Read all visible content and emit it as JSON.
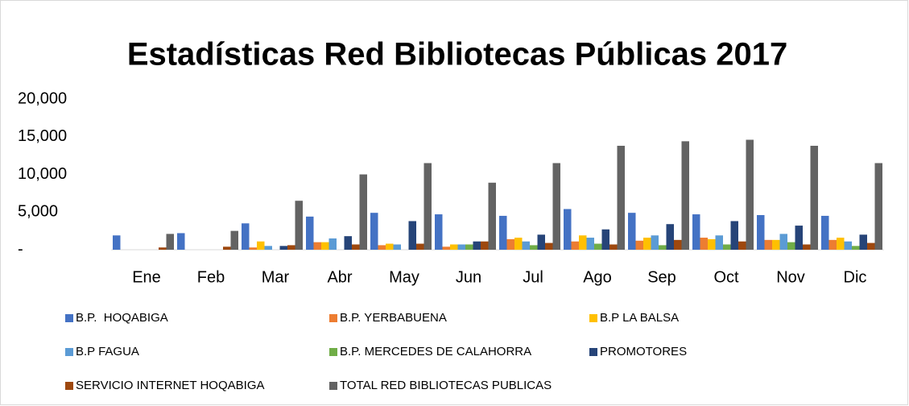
{
  "chart_data": {
    "type": "bar",
    "title": "Estadísticas Red Bibliotecas Públicas 2017",
    "categories": [
      "Ene",
      "Feb",
      "Mar",
      "Abr",
      "May",
      "Jun",
      "Jul",
      "Ago",
      "Sep",
      "Oct",
      "Nov",
      "Dic"
    ],
    "series": [
      {
        "name": "B.P.  HOQABIGA",
        "color": "#4472c4",
        "values": [
          1900,
          2200,
          3500,
          4400,
          4900,
          4700,
          4500,
          5400,
          4900,
          4700,
          4600,
          4500
        ]
      },
      {
        "name": "B.P. YERBABUENA",
        "color": "#ed7d31",
        "values": [
          0,
          0,
          300,
          1000,
          600,
          400,
          1400,
          1100,
          1200,
          1600,
          1300,
          1300
        ]
      },
      {
        "name": "B.P LA BALSA",
        "color": "#ffc000",
        "values": [
          0,
          0,
          1100,
          1000,
          800,
          700,
          1600,
          1900,
          1600,
          1400,
          1300,
          1600
        ]
      },
      {
        "name": "B.P FAGUA",
        "color": "#5b9bd5",
        "values": [
          0,
          0,
          500,
          1500,
          700,
          700,
          1100,
          1600,
          1900,
          1900,
          2100,
          1100
        ]
      },
      {
        "name": "B.P. MERCEDES DE CALAHORRA",
        "color": "#70ad47",
        "values": [
          0,
          0,
          0,
          0,
          0,
          700,
          600,
          800,
          600,
          700,
          1000,
          500
        ]
      },
      {
        "name": "PROMOTORES",
        "color": "#264478",
        "values": [
          0,
          0,
          500,
          1800,
          3800,
          1100,
          2000,
          2700,
          3400,
          3800,
          3200,
          2000
        ]
      },
      {
        "name": "SERVICIO INTERNET HOQABIGA",
        "color": "#9e480e",
        "values": [
          300,
          400,
          600,
          700,
          800,
          1100,
          900,
          700,
          1300,
          1100,
          700,
          900
        ]
      },
      {
        "name": "TOTAL RED BIBLIOTECAS PUBLICAS",
        "color": "#636363",
        "values": [
          2100,
          2500,
          6500,
          10000,
          11500,
          8900,
          11500,
          13800,
          14400,
          14600,
          13800,
          11500
        ]
      }
    ],
    "ylim": [
      0,
      20000
    ],
    "yticks": [
      {
        "value": 0,
        "label": "-"
      },
      {
        "value": 5000,
        "label": "5,000"
      },
      {
        "value": 10000,
        "label": "10,000"
      },
      {
        "value": 15000,
        "label": "15,000"
      },
      {
        "value": 20000,
        "label": "20,000"
      }
    ],
    "grid": false,
    "legend": "bottom"
  }
}
